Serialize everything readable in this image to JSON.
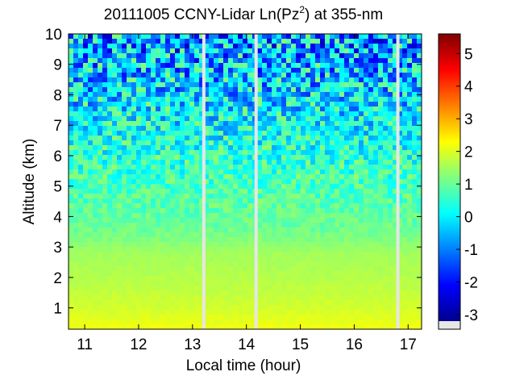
{
  "chart_data": {
    "type": "heatmap",
    "title_main": "20111005 CCNY-Lidar Ln(Pz",
    "title_sup": "2",
    "title_tail": ") at 355-nm",
    "xlabel": "Local time (hour)",
    "ylabel": "Altitude (km)",
    "xlim": [
      10.7,
      17.25
    ],
    "ylim": [
      0.3,
      10
    ],
    "x_ticks": [
      "11",
      "12",
      "13",
      "14",
      "15",
      "16",
      "17"
    ],
    "y_ticks": [
      "1",
      "2",
      "3",
      "4",
      "5",
      "6",
      "7",
      "8",
      "9",
      "10"
    ],
    "data_gaps_hours": [
      [
        13.18,
        13.24
      ],
      [
        14.15,
        14.21
      ],
      [
        16.78,
        16.84
      ]
    ],
    "colorbar": {
      "range": [
        -3.2,
        5.6
      ],
      "ticks": [
        "-3",
        "-2",
        "-1",
        "0",
        "1",
        "2",
        "3",
        "4",
        "5"
      ],
      "colormap": "jet",
      "nodata_color": "#e6e6e6"
    },
    "value_profile": [
      {
        "altitude_km": 0.3,
        "value": 2.2
      },
      {
        "altitude_km": 1.0,
        "value": 1.9
      },
      {
        "altitude_km": 2.0,
        "value": 1.65
      },
      {
        "altitude_km": 2.8,
        "value": 1.5
      },
      {
        "altitude_km": 3.5,
        "value": 1.05
      },
      {
        "altitude_km": 4.5,
        "value": 0.85
      },
      {
        "altitude_km": 5.5,
        "value": 0.6
      },
      {
        "altitude_km": 6.5,
        "value": 0.3
      },
      {
        "altitude_km": 8.0,
        "value": -0.2
      },
      {
        "altitude_km": 10.0,
        "value": -0.8
      }
    ]
  }
}
